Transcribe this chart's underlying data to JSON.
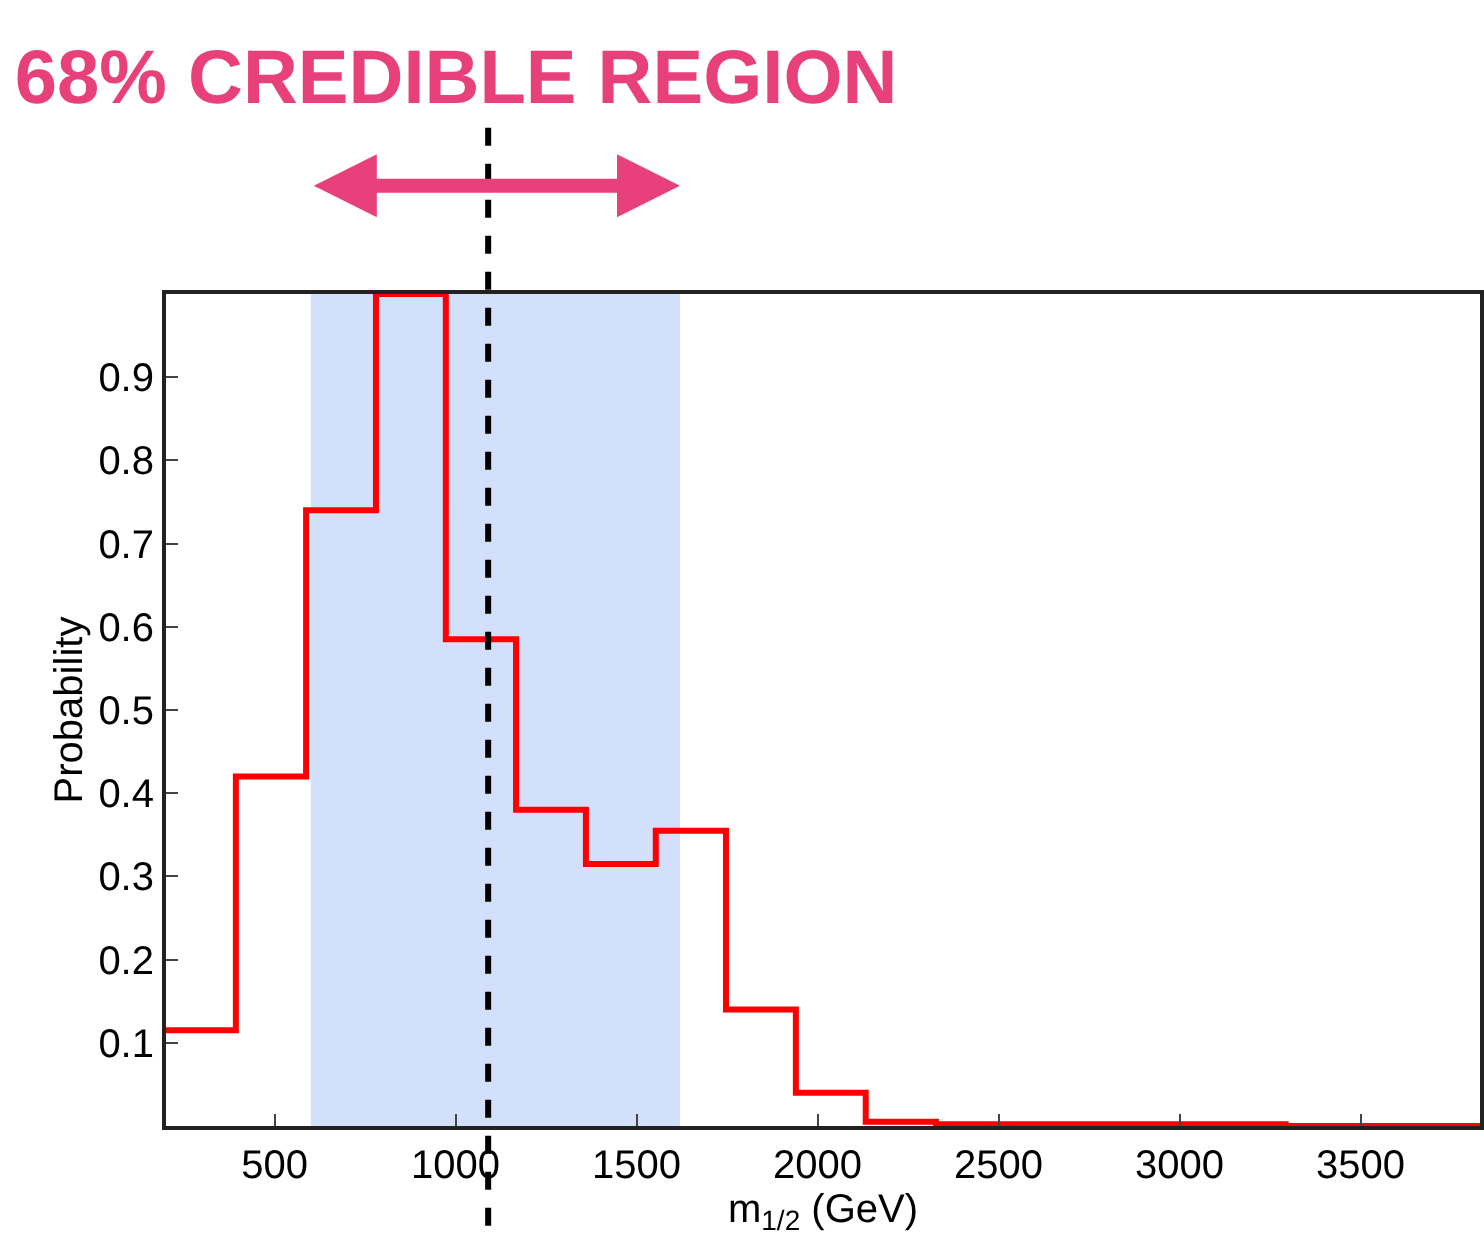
{
  "chart_data": {
    "type": "histogram",
    "title": "68% CREDIBLE REGION",
    "xlabel": "m$_{1/2}$ (GeV)",
    "ylabel": "Probability",
    "bins": [
      200,
      393,
      587,
      780,
      973,
      1167,
      1360,
      1553,
      1747,
      1940,
      2133,
      2327,
      2520,
      2713,
      2907,
      3100,
      3293,
      3830
    ],
    "values": [
      0.115,
      0.42,
      0.74,
      1.0,
      0.585,
      0.38,
      0.315,
      0.355,
      0.14,
      0.04,
      0.005,
      0.002,
      0.002,
      0.002,
      0.002,
      0.002,
      0
    ],
    "color": "#ff0000",
    "xlim": [
      200,
      3830
    ],
    "ylim": [
      0,
      1
    ],
    "xticks": [
      500,
      1000,
      1500,
      2000,
      2500,
      3000,
      3500
    ],
    "yticks": [
      0.1,
      0.2,
      0.3,
      0.4,
      0.5,
      0.6,
      0.7,
      0.8,
      0.9
    ],
    "bands": [
      {
        "axis": "x",
        "from": 600,
        "to": 1620,
        "color": "#d2e0fb"
      }
    ],
    "ref_lines": [
      {
        "axis": "x",
        "value": 1090,
        "color": "#000000",
        "line_style": "dashed"
      }
    ],
    "grid": false
  }
}
